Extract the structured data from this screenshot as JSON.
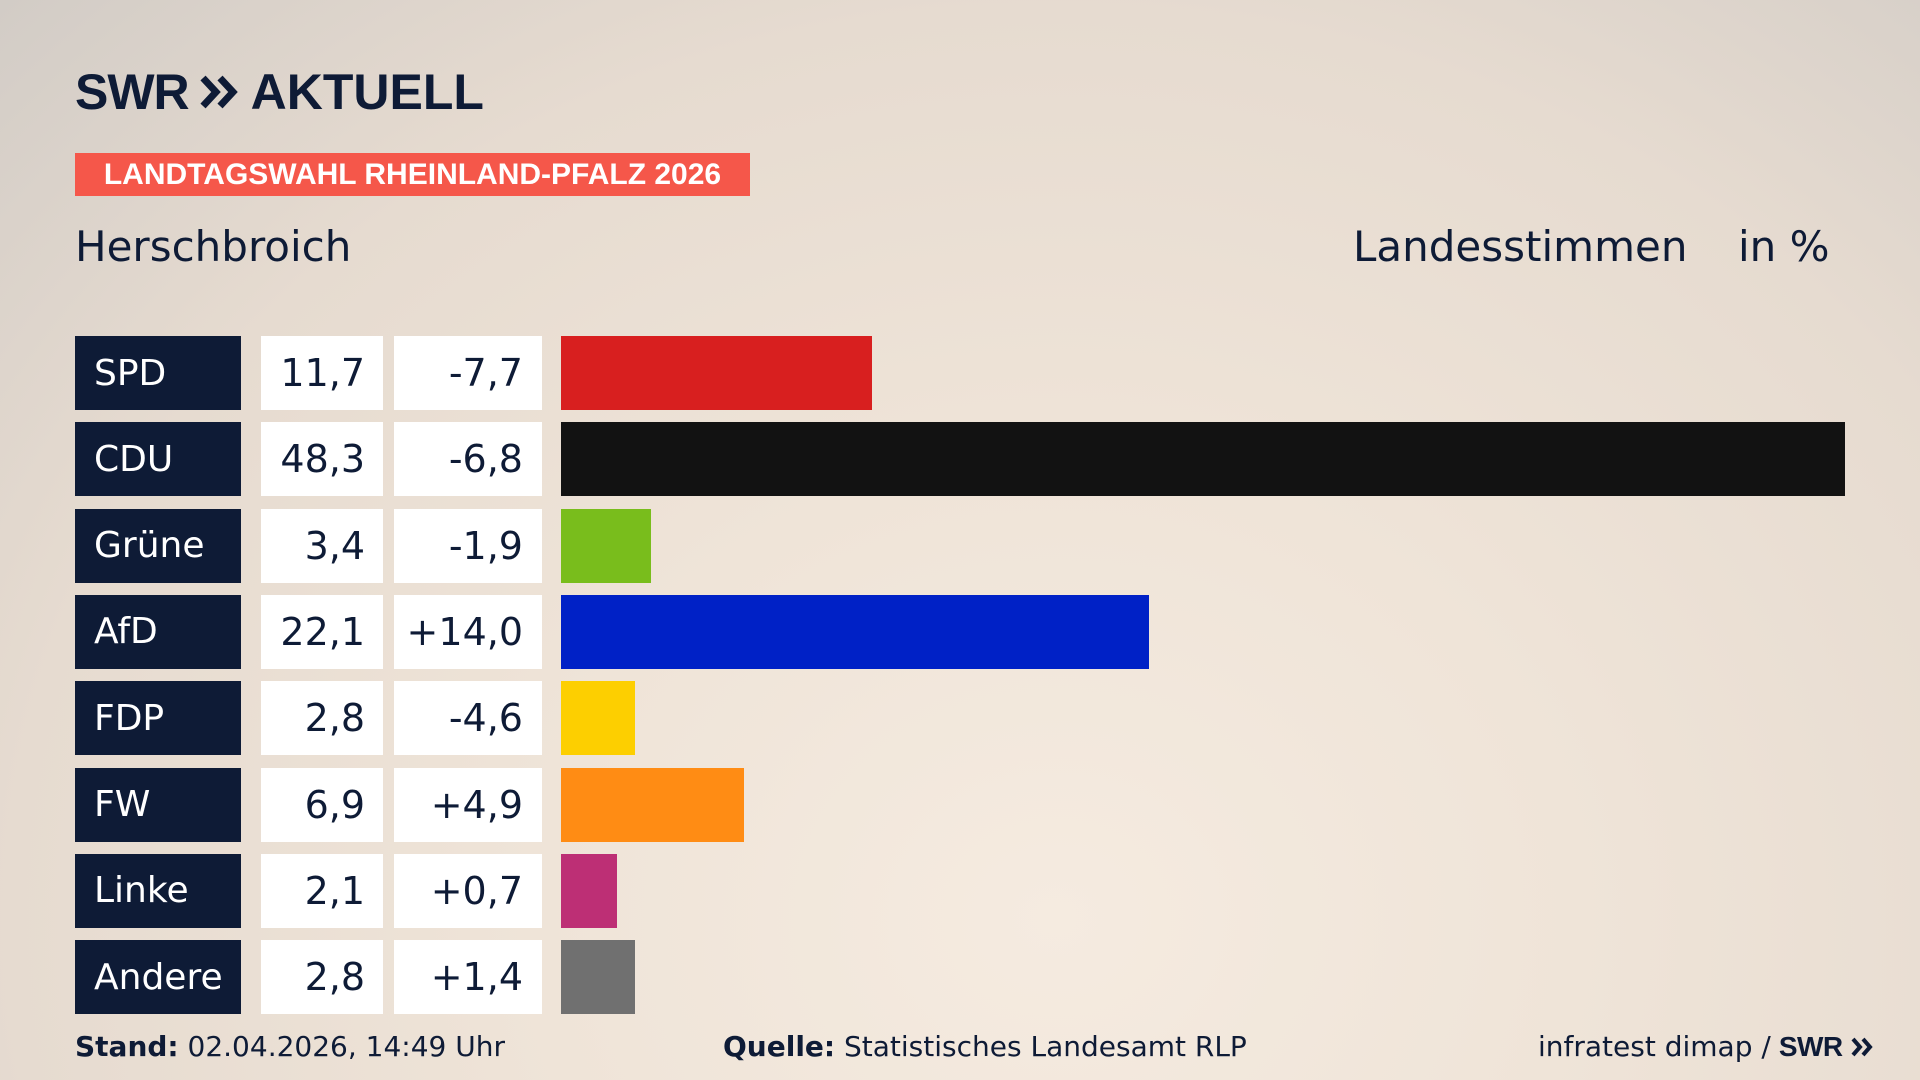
{
  "brand": {
    "logo_text": "SWR",
    "aktuell": "AKTUELL",
    "footer_logo": "SWR"
  },
  "banner": "LANDTAGSWAHL RHEINLAND-PFALZ 2026",
  "place": "Herschbroich",
  "measure": "Landesstimmen",
  "unit": "in %",
  "footer": {
    "stand_label": "Stand:",
    "stand_value": "02.04.2026, 14:49 Uhr",
    "quelle_label": "Quelle:",
    "quelle_value": "Statistisches Landesamt RLP",
    "pollster": "infratest dimap /"
  },
  "chart_data": {
    "type": "bar",
    "orientation": "horizontal",
    "categories": [
      "SPD",
      "CDU",
      "Grüne",
      "AfD",
      "FDP",
      "FW",
      "Linke",
      "Andere"
    ],
    "values": [
      11.7,
      48.3,
      3.4,
      22.1,
      2.8,
      6.9,
      2.1,
      2.8
    ],
    "value_labels": [
      "11,7",
      "48,3",
      "3,4",
      "22,1",
      "2,8",
      "6,9",
      "2,1",
      "2,8"
    ],
    "change_labels": [
      "-7,7",
      "-6,8",
      "-1,9",
      "+14,0",
      "-4,6",
      "+4,9",
      "+0,7",
      "+1,4"
    ],
    "changes": [
      -7.7,
      -6.8,
      -1.9,
      14.0,
      -4.6,
      4.9,
      0.7,
      1.4
    ],
    "colors": [
      "#d81f1f",
      "#121212",
      "#79bd1c",
      "#0021c6",
      "#fdcf00",
      "#ff8c14",
      "#bd2f75",
      "#707070"
    ],
    "xlim": [
      0,
      48.3
    ],
    "grid": false,
    "legend": "none"
  }
}
